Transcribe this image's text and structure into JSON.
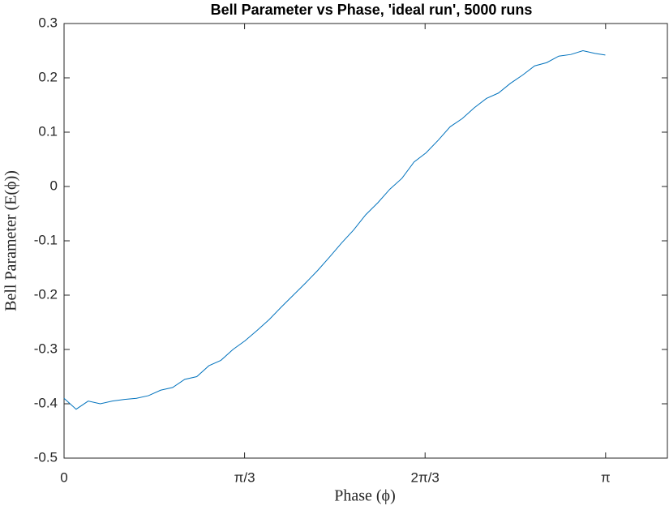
{
  "chart_data": {
    "type": "line",
    "title": "Bell Parameter vs Phase, 'ideal run', 5000 runs",
    "xlabel": "Phase (ϕ)",
    "ylabel": "Bell Parameter (E(ϕ))",
    "x": [
      0,
      0.07,
      0.14,
      0.21,
      0.28,
      0.35,
      0.42,
      0.49,
      0.56,
      0.63,
      0.7,
      0.77,
      0.84,
      0.91,
      0.98,
      1.05,
      1.12,
      1.19,
      1.26,
      1.33,
      1.4,
      1.47,
      1.54,
      1.61,
      1.68,
      1.75,
      1.82,
      1.89,
      1.96,
      2.03,
      2.1,
      2.17,
      2.24,
      2.31,
      2.38,
      2.45,
      2.52,
      2.59,
      2.66,
      2.73,
      2.8,
      2.87,
      2.94,
      3.01,
      3.08,
      3.14
    ],
    "series": [
      {
        "color": "#0072bd",
        "values": [
          -0.39,
          -0.41,
          -0.395,
          -0.4,
          -0.395,
          -0.392,
          -0.39,
          -0.385,
          -0.375,
          -0.37,
          -0.355,
          -0.35,
          -0.33,
          -0.32,
          -0.3,
          -0.284,
          -0.265,
          -0.245,
          -0.222,
          -0.2,
          -0.178,
          -0.155,
          -0.13,
          -0.104,
          -0.08,
          -0.052,
          -0.03,
          -0.005,
          0.015,
          0.045,
          0.062,
          0.085,
          0.11,
          0.125,
          0.145,
          0.162,
          0.172,
          0.19,
          0.205,
          0.222,
          0.228,
          0.24,
          0.243,
          0.25,
          0.245,
          0.242
        ]
      }
    ],
    "xlim": [
      0,
      3.5
    ],
    "xticks": [
      0,
      {
        "value": 1.0472,
        "label": "π/3"
      },
      {
        "value": 2.0944,
        "label": "2π/3"
      },
      {
        "value": 3.1416,
        "label": "π"
      }
    ],
    "ylim": [
      -0.5,
      0.3
    ],
    "yticks": [
      -0.5,
      -0.4,
      -0.3,
      -0.2,
      -0.1,
      0,
      0.1,
      0.2,
      0.3
    ],
    "grid": false
  }
}
